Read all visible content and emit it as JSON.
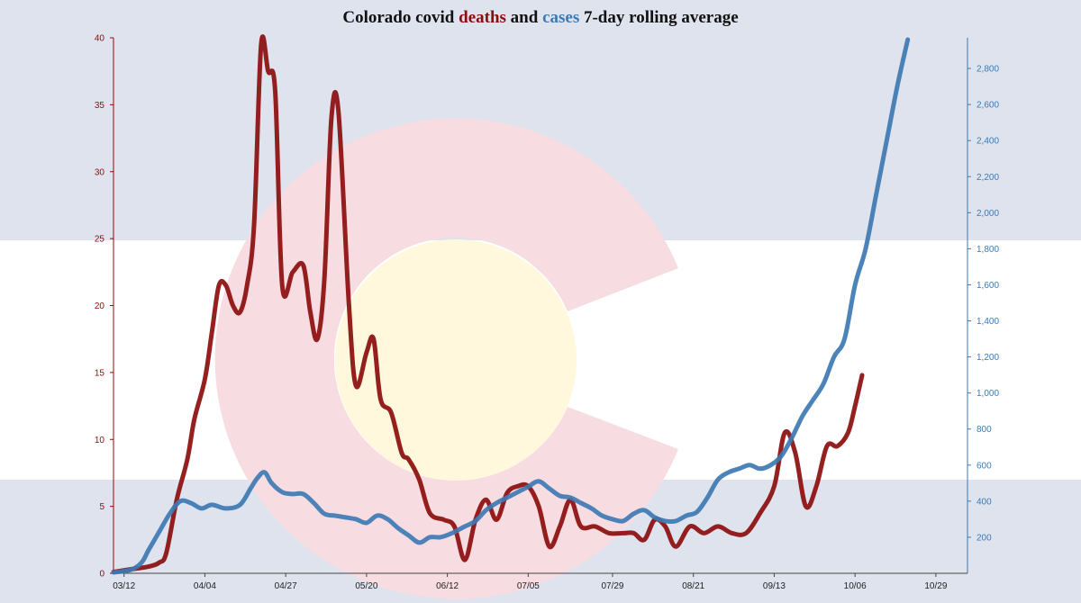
{
  "colors": {
    "deaths": "#8b0d0d",
    "cases": "#3d7ab3",
    "flag_blue": "#dfe3ee",
    "flag_white": "#ffffff",
    "flag_red": "#f7dce1",
    "flag_gold": "#fff8dc",
    "title": "#111111"
  },
  "title": {
    "prefix": "Colorado covid ",
    "deaths_word": "deaths",
    "middle": " and ",
    "cases_word": "cases",
    "suffix": " 7-day rolling average"
  },
  "chart_data": {
    "type": "line",
    "title": "Colorado covid deaths and cases 7-day rolling average",
    "x_tick_labels": [
      "03/12",
      "04/04",
      "04/27",
      "05/20",
      "06/12",
      "07/05",
      "07/29",
      "08/21",
      "09/13",
      "10/06",
      "10/29"
    ],
    "x_range": [
      "03/09",
      "11/07"
    ],
    "y_left": {
      "label": "",
      "range": [
        0,
        40
      ],
      "ticks": [
        0,
        5,
        10,
        15,
        20,
        25,
        30,
        35,
        40
      ]
    },
    "y_right": {
      "label": "",
      "range": [
        0,
        2970
      ],
      "ticks": [
        "200",
        "400",
        "600",
        "800",
        "1,000",
        "1,200",
        "1,400",
        "1,600",
        "1,800",
        "2,000",
        "2,200",
        "2,400",
        "2,600",
        "2,800"
      ],
      "tick_values": [
        200,
        400,
        600,
        800,
        1000,
        1200,
        1400,
        1600,
        1800,
        2000,
        2200,
        2400,
        2600,
        2800
      ]
    },
    "grid": false,
    "series": [
      {
        "name": "deaths",
        "axis": "left",
        "points": [
          [
            "03/09",
            0.1
          ],
          [
            "03/14",
            0.3
          ],
          [
            "03/19",
            0.5
          ],
          [
            "03/22",
            0.8
          ],
          [
            "03/24",
            1.5
          ],
          [
            "03/27",
            5.5
          ],
          [
            "03/30",
            8.5
          ],
          [
            "04/01",
            11.5
          ],
          [
            "04/04",
            14.5
          ],
          [
            "04/06",
            18
          ],
          [
            "04/08",
            21.5
          ],
          [
            "04/10",
            21.5
          ],
          [
            "04/12",
            20
          ],
          [
            "04/14",
            19.5
          ],
          [
            "04/16",
            21.5
          ],
          [
            "04/18",
            26
          ],
          [
            "04/20",
            39.5
          ],
          [
            "04/22",
            37.5
          ],
          [
            "04/24",
            36
          ],
          [
            "04/26",
            21.5
          ],
          [
            "04/29",
            22.5
          ],
          [
            "05/02",
            23
          ],
          [
            "05/04",
            19.5
          ],
          [
            "05/06",
            17.5
          ],
          [
            "05/08",
            22
          ],
          [
            "05/10",
            34
          ],
          [
            "05/12",
            34.5
          ],
          [
            "05/15",
            20
          ],
          [
            "05/17",
            14
          ],
          [
            "05/20",
            16.5
          ],
          [
            "05/22",
            17.5
          ],
          [
            "05/24",
            13
          ],
          [
            "05/27",
            12
          ],
          [
            "05/30",
            9
          ],
          [
            "06/01",
            8.5
          ],
          [
            "06/04",
            7
          ],
          [
            "06/07",
            4.5
          ],
          [
            "06/11",
            4
          ],
          [
            "06/14",
            3.5
          ],
          [
            "06/17",
            1
          ],
          [
            "06/20",
            4
          ],
          [
            "06/23",
            5.5
          ],
          [
            "06/26",
            4
          ],
          [
            "06/29",
            6
          ],
          [
            "07/02",
            6.5
          ],
          [
            "07/05",
            6.5
          ],
          [
            "07/08",
            5
          ],
          [
            "07/11",
            2
          ],
          [
            "07/14",
            3.5
          ],
          [
            "07/17",
            5.5
          ],
          [
            "07/20",
            3.5
          ],
          [
            "07/24",
            3.5
          ],
          [
            "07/28",
            3
          ],
          [
            "08/01",
            3
          ],
          [
            "08/04",
            3
          ],
          [
            "08/07",
            2.5
          ],
          [
            "08/10",
            4
          ],
          [
            "08/13",
            3.5
          ],
          [
            "08/16",
            2
          ],
          [
            "08/20",
            3.5
          ],
          [
            "08/24",
            3
          ],
          [
            "08/28",
            3.5
          ],
          [
            "09/01",
            3
          ],
          [
            "09/05",
            3
          ],
          [
            "09/09",
            4.5
          ],
          [
            "09/13",
            6.5
          ],
          [
            "09/16",
            10.5
          ],
          [
            "09/19",
            9
          ],
          [
            "09/22",
            5
          ],
          [
            "09/25",
            6.5
          ],
          [
            "09/28",
            9.5
          ],
          [
            "10/01",
            9.5
          ],
          [
            "10/04",
            10.5
          ],
          [
            "10/06",
            12.5
          ],
          [
            "10/08",
            14.8
          ]
        ]
      },
      {
        "name": "cases",
        "axis": "right",
        "points": [
          [
            "03/09",
            5
          ],
          [
            "03/14",
            20
          ],
          [
            "03/17",
            60
          ],
          [
            "03/19",
            130
          ],
          [
            "03/22",
            230
          ],
          [
            "03/25",
            330
          ],
          [
            "03/28",
            400
          ],
          [
            "03/31",
            390
          ],
          [
            "04/03",
            360
          ],
          [
            "04/06",
            380
          ],
          [
            "04/10",
            360
          ],
          [
            "04/14",
            380
          ],
          [
            "04/17",
            470
          ],
          [
            "04/19",
            530
          ],
          [
            "04/21",
            560
          ],
          [
            "04/23",
            500
          ],
          [
            "04/26",
            450
          ],
          [
            "04/29",
            440
          ],
          [
            "05/02",
            440
          ],
          [
            "05/05",
            390
          ],
          [
            "05/08",
            330
          ],
          [
            "05/11",
            320
          ],
          [
            "05/14",
            310
          ],
          [
            "05/17",
            300
          ],
          [
            "05/20",
            280
          ],
          [
            "05/23",
            320
          ],
          [
            "05/26",
            300
          ],
          [
            "05/29",
            250
          ],
          [
            "06/01",
            210
          ],
          [
            "06/04",
            170
          ],
          [
            "06/07",
            200
          ],
          [
            "06/10",
            200
          ],
          [
            "06/13",
            220
          ],
          [
            "06/17",
            260
          ],
          [
            "06/20",
            290
          ],
          [
            "06/23",
            350
          ],
          [
            "06/26",
            390
          ],
          [
            "06/29",
            420
          ],
          [
            "07/02",
            450
          ],
          [
            "07/05",
            480
          ],
          [
            "07/08",
            510
          ],
          [
            "07/11",
            470
          ],
          [
            "07/14",
            430
          ],
          [
            "07/17",
            420
          ],
          [
            "07/20",
            390
          ],
          [
            "07/23",
            360
          ],
          [
            "07/26",
            320
          ],
          [
            "07/29",
            300
          ],
          [
            "08/01",
            290
          ],
          [
            "08/04",
            330
          ],
          [
            "08/07",
            350
          ],
          [
            "08/10",
            310
          ],
          [
            "08/13",
            290
          ],
          [
            "08/16",
            290
          ],
          [
            "08/19",
            320
          ],
          [
            "08/22",
            340
          ],
          [
            "08/25",
            420
          ],
          [
            "08/28",
            520
          ],
          [
            "08/31",
            560
          ],
          [
            "09/03",
            580
          ],
          [
            "09/06",
            600
          ],
          [
            "09/09",
            580
          ],
          [
            "09/12",
            600
          ],
          [
            "09/15",
            650
          ],
          [
            "09/18",
            750
          ],
          [
            "09/21",
            870
          ],
          [
            "09/24",
            960
          ],
          [
            "09/27",
            1050
          ],
          [
            "09/30",
            1200
          ],
          [
            "10/03",
            1300
          ],
          [
            "10/06",
            1600
          ],
          [
            "10/09",
            1800
          ],
          [
            "10/12",
            2100
          ],
          [
            "10/15",
            2400
          ],
          [
            "10/18",
            2700
          ],
          [
            "10/21",
            2960
          ]
        ]
      }
    ]
  }
}
